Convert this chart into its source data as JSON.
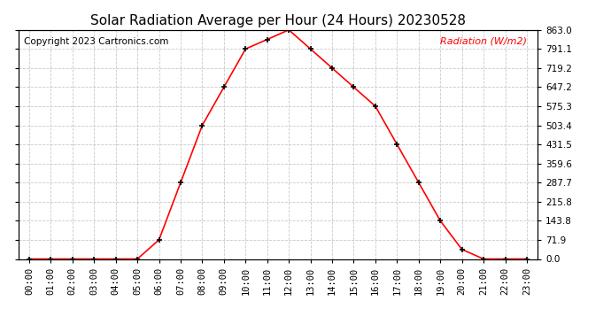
{
  "title": "Solar Radiation Average per Hour (24 Hours) 20230528",
  "copyright_text": "Copyright 2023 Cartronics.com",
  "ylabel": "Radiation (W/m2)",
  "hours": [
    0,
    1,
    2,
    3,
    4,
    5,
    6,
    7,
    8,
    9,
    10,
    11,
    12,
    13,
    14,
    15,
    16,
    17,
    18,
    19,
    20,
    21,
    22,
    23
  ],
  "values": [
    0.0,
    0.0,
    0.0,
    0.0,
    0.0,
    0.0,
    71.9,
    287.7,
    503.4,
    647.2,
    791.1,
    827.0,
    863.0,
    791.1,
    719.2,
    647.2,
    575.3,
    431.5,
    287.7,
    143.8,
    35.9,
    0.0,
    0.0,
    0.0
  ],
  "yticks": [
    0.0,
    71.9,
    143.8,
    215.8,
    287.7,
    359.6,
    431.5,
    503.4,
    575.3,
    647.2,
    719.2,
    791.1,
    863.0
  ],
  "ymax": 863.0,
  "line_color": "red",
  "marker_color": "black",
  "title_fontsize": 11,
  "tick_fontsize": 7.5,
  "copyright_fontsize": 7.5,
  "ylabel_fontsize": 8,
  "bg_color": "#ffffff",
  "grid_color": "#bbbbbb"
}
